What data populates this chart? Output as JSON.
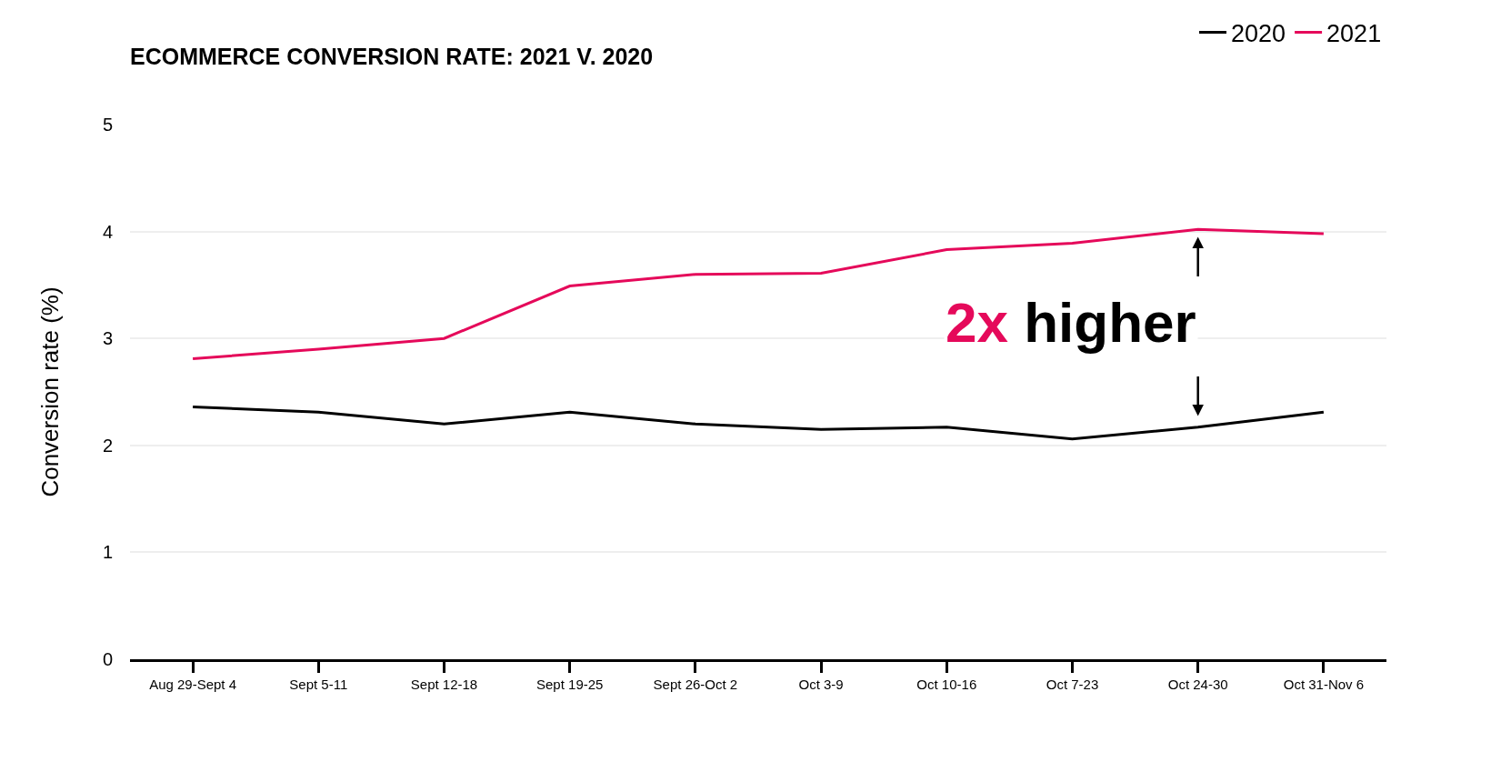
{
  "chart_data": {
    "type": "line",
    "title": "ECOMMERCE CONVERSION RATE: 2021 V. 2020",
    "ylabel": "Conversion rate (%)",
    "categories": [
      "Aug 29-Sept 4",
      "Sept 5-11",
      "Sept 12-18",
      "Sept 19-25",
      "Sept 26-Oct 2",
      "Oct 3-9",
      "Oct 10-16",
      "Oct 7-23",
      "Oct 24-30",
      "Oct 31-Nov 6"
    ],
    "series": [
      {
        "name": "2020",
        "color": "#000000",
        "values": [
          2.36,
          2.31,
          2.2,
          2.31,
          2.2,
          2.15,
          2.17,
          2.06,
          2.17,
          2.31
        ]
      },
      {
        "name": "2021",
        "color": "#e5095a",
        "values": [
          2.81,
          2.9,
          3.0,
          3.49,
          3.6,
          3.61,
          3.83,
          3.89,
          4.02,
          3.98
        ]
      }
    ],
    "annotations": [
      "2x higher"
    ],
    "ylim": [
      0,
      5
    ],
    "yticks": [
      0,
      1,
      2,
      3,
      4,
      5
    ],
    "grid": "y",
    "legend": "top right",
    "marker": "none",
    "line_style": "solid"
  }
}
